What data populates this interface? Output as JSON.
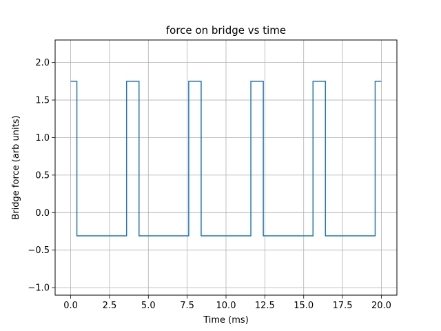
{
  "chart_data": {
    "type": "line",
    "title": "force on bridge vs time",
    "xlabel": "Time (ms)",
    "ylabel": "Bridge force (arb units)",
    "xlim": [
      -1.0,
      21.0
    ],
    "ylim": [
      -1.1,
      2.3
    ],
    "xticks": [
      0.0,
      2.5,
      5.0,
      7.5,
      10.0,
      12.5,
      15.0,
      17.5,
      20.0
    ],
    "xtick_labels": [
      "0.0",
      "2.5",
      "5.0",
      "7.5",
      "10.0",
      "12.5",
      "15.0",
      "17.5",
      "20.0"
    ],
    "yticks": [
      -1.0,
      -0.5,
      0.0,
      0.5,
      1.0,
      1.5,
      2.0
    ],
    "ytick_labels": [
      "−1.0",
      "−0.5",
      "0.0",
      "0.5",
      "1.0",
      "1.5",
      "2.0"
    ],
    "grid": true,
    "series_color": "#1f77b4",
    "series": [
      {
        "x": [
          0.0,
          0.4,
          0.4,
          3.6,
          3.6,
          4.4,
          4.4,
          7.6,
          7.6,
          8.4,
          8.4,
          11.6,
          11.6,
          12.4,
          12.4,
          15.6,
          15.6,
          16.4,
          16.4,
          19.6,
          19.6,
          20.0
        ],
        "y": [
          1.75,
          1.75,
          -0.31,
          -0.31,
          1.75,
          1.75,
          -0.31,
          -0.31,
          1.75,
          1.75,
          -0.31,
          -0.31,
          1.75,
          1.75,
          -0.31,
          -0.31,
          1.75,
          1.75,
          -0.31,
          -0.31,
          1.75,
          1.75
        ]
      }
    ]
  }
}
